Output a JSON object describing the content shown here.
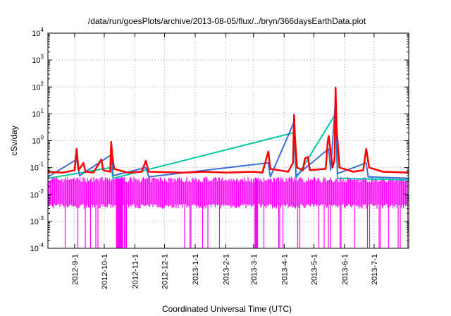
{
  "chart_data": {
    "type": "line",
    "title": "/data/run/goesPlots/archive/2013-08-05/flux/../bryn/366daysEarthData.plot",
    "xlabel": "Coordinated Universal Time (UTC)",
    "ylabel": "cSv/day",
    "yscale": "log",
    "ylim": [
      0.0001,
      10000
    ],
    "xlim": [
      "2012-08-05",
      "2013-08-05"
    ],
    "grid": true,
    "y_ticks": [
      {
        "value": 0.0001,
        "base": "10",
        "exp": "-4"
      },
      {
        "value": 0.001,
        "base": "10",
        "exp": "-3"
      },
      {
        "value": 0.01,
        "base": "10",
        "exp": "-2"
      },
      {
        "value": 0.1,
        "base": "10",
        "exp": "-1"
      },
      {
        "value": 1,
        "base": "10",
        "exp": "0"
      },
      {
        "value": 10,
        "base": "10",
        "exp": "1"
      },
      {
        "value": 100,
        "base": "10",
        "exp": "2"
      },
      {
        "value": 1000,
        "base": "10",
        "exp": "3"
      },
      {
        "value": 10000,
        "base": "10",
        "exp": "4"
      }
    ],
    "x_ticks": [
      {
        "date": "2012-09-01",
        "label": "2012-9-1"
      },
      {
        "date": "2012-10-01",
        "label": "2012-10-1"
      },
      {
        "date": "2012-11-01",
        "label": "2012-11-1"
      },
      {
        "date": "2012-12-01",
        "label": "2012-12-1"
      },
      {
        "date": "2013-01-01",
        "label": "2013-1-1"
      },
      {
        "date": "2013-02-01",
        "label": "2013-2-1"
      },
      {
        "date": "2013-03-01",
        "label": "2013-3-1"
      },
      {
        "date": "2013-04-01",
        "label": "2013-4-1"
      },
      {
        "date": "2013-05-01",
        "label": "2013-5-1"
      },
      {
        "date": "2013-06-01",
        "label": "2013-6-1"
      },
      {
        "date": "2013-07-01",
        "label": "2013-7-1"
      }
    ],
    "series": [
      {
        "color": "#ff0000",
        "values": [
          [
            "2012-08-05",
            0.07
          ],
          [
            "2012-08-20",
            0.065
          ],
          [
            "2012-09-01",
            0.08
          ],
          [
            "2012-09-03",
            0.5
          ],
          [
            "2012-09-05",
            0.08
          ],
          [
            "2012-09-10",
            0.15
          ],
          [
            "2012-09-12",
            0.07
          ],
          [
            "2012-09-20",
            0.065
          ],
          [
            "2012-09-28",
            0.2
          ],
          [
            "2012-09-30",
            0.08
          ],
          [
            "2012-10-07",
            0.07
          ],
          [
            "2012-10-08",
            0.9
          ],
          [
            "2012-10-09",
            0.3
          ],
          [
            "2012-10-11",
            0.09
          ],
          [
            "2012-10-25",
            0.065
          ],
          [
            "2012-11-08",
            0.07
          ],
          [
            "2012-11-12",
            0.18
          ],
          [
            "2012-11-15",
            0.07
          ],
          [
            "2012-12-20",
            0.065
          ],
          [
            "2013-01-10",
            0.07
          ],
          [
            "2013-02-01",
            0.065
          ],
          [
            "2013-03-01",
            0.07
          ],
          [
            "2013-03-10",
            0.065
          ],
          [
            "2013-03-16",
            0.4
          ],
          [
            "2013-03-18",
            0.09
          ],
          [
            "2013-04-05",
            0.07
          ],
          [
            "2013-04-10",
            0.15
          ],
          [
            "2013-04-11",
            9
          ],
          [
            "2013-04-12",
            1.2
          ],
          [
            "2013-04-14",
            0.1
          ],
          [
            "2013-04-20",
            0.08
          ],
          [
            "2013-04-22",
            0.22
          ],
          [
            "2013-04-25",
            0.25
          ],
          [
            "2013-04-27",
            0.08
          ],
          [
            "2013-05-13",
            0.09
          ],
          [
            "2013-05-15",
            0.9
          ],
          [
            "2013-05-16",
            1.5
          ],
          [
            "2013-05-18",
            0.4
          ],
          [
            "2013-05-20",
            0.1
          ],
          [
            "2013-05-22",
            0.2
          ],
          [
            "2013-05-23",
            95
          ],
          [
            "2013-05-24",
            3
          ],
          [
            "2013-05-27",
            0.1
          ],
          [
            "2013-06-10",
            0.07
          ],
          [
            "2013-06-20",
            0.08
          ],
          [
            "2013-06-23",
            0.5
          ],
          [
            "2013-06-26",
            0.1
          ],
          [
            "2013-07-10",
            0.07
          ],
          [
            "2013-08-05",
            0.065
          ]
        ]
      },
      {
        "color": "#3a6fd8",
        "values": [
          [
            "2012-08-05",
            0.045
          ],
          [
            "2012-09-03",
            0.2
          ],
          [
            "2012-09-06",
            0.05
          ],
          [
            "2012-10-08",
            0.3
          ],
          [
            "2012-10-10",
            0.05
          ],
          [
            "2012-11-12",
            0.1
          ],
          [
            "2012-11-15",
            0.045
          ],
          [
            "2013-03-16",
            0.15
          ],
          [
            "2013-03-18",
            0.045
          ],
          [
            "2013-04-11",
            5
          ],
          [
            "2013-04-13",
            0.05
          ],
          [
            "2013-05-16",
            0.5
          ],
          [
            "2013-05-18",
            0.08
          ],
          [
            "2013-05-23",
            35
          ],
          [
            "2013-05-25",
            0.06
          ],
          [
            "2013-06-23",
            0.15
          ],
          [
            "2013-06-25",
            0.045
          ],
          [
            "2013-08-05",
            0.04
          ]
        ]
      },
      {
        "color": "#00c8a0",
        "values": [
          [
            "2012-08-05",
            0.04
          ],
          [
            "2012-10-08",
            0.1
          ],
          [
            "2012-10-10",
            0.04
          ],
          [
            "2013-04-11",
            2
          ],
          [
            "2013-04-13",
            0.04
          ],
          [
            "2013-05-23",
            10
          ],
          [
            "2013-05-25",
            0.04
          ],
          [
            "2013-08-05",
            0.035
          ]
        ]
      },
      {
        "color": "#ff00ff",
        "values": [
          [
            "2012-08-05",
            0.035
          ],
          [
            "2013-08-05",
            0.035
          ]
        ]
      }
    ]
  }
}
